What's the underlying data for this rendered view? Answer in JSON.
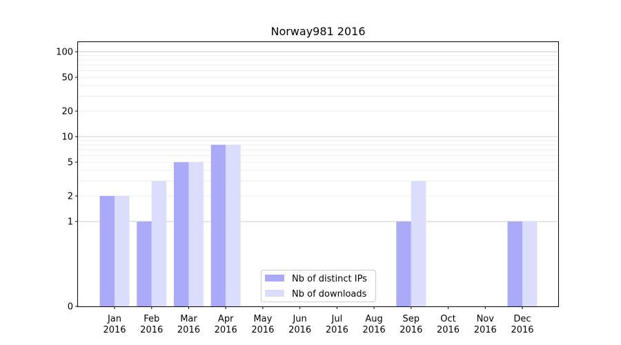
{
  "chart_data": {
    "type": "bar",
    "title": "Norway981 2016",
    "xlabel": "",
    "ylabel": "",
    "y_scale": "symlog",
    "ylim": [
      0,
      130
    ],
    "y_ticks": [
      0,
      1,
      2,
      5,
      10,
      20,
      50,
      100
    ],
    "categories": [
      "Jan\n2016",
      "Feb\n2016",
      "Mar\n2016",
      "Apr\n2016",
      "May\n2016",
      "Jun\n2016",
      "Jul\n2016",
      "Aug\n2016",
      "Sep\n2016",
      "Oct\n2016",
      "Nov\n2016",
      "Dec\n2016"
    ],
    "series": [
      {
        "name": "Nb of distinct IPs",
        "color": "#aaaaf8",
        "values": [
          2,
          1,
          5,
          8,
          0,
          0,
          0,
          0,
          1,
          0,
          0,
          1
        ]
      },
      {
        "name": "Nb of downloads",
        "color": "#dcdcfc",
        "values": [
          2,
          3,
          5,
          8,
          0,
          0,
          0,
          0,
          3,
          0,
          0,
          1
        ]
      }
    ],
    "grid": true,
    "legend_position": "lower center"
  }
}
